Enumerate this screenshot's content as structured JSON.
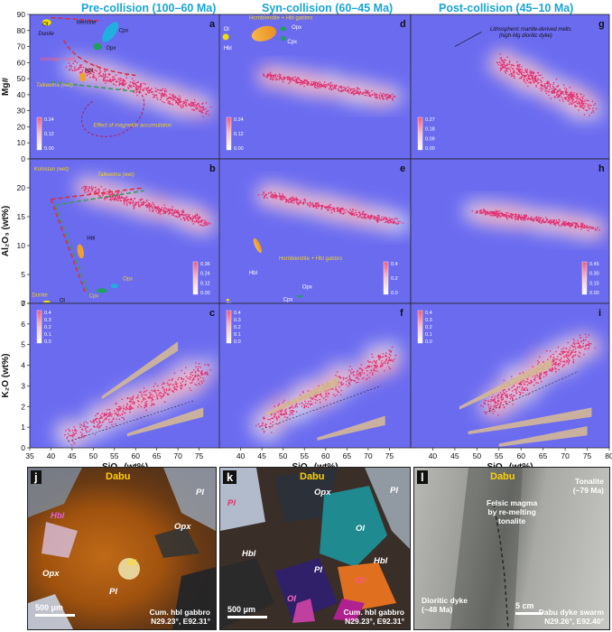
{
  "titles": {
    "pre": "Pre-collision (100–60 Ma)",
    "syn": "Syn-collision (60–45 Ma)",
    "post": "Post-collision (45–10 Ma)"
  },
  "axes": {
    "ylabel_top": "Mg#",
    "ylabel_mid": "Al₂O₃ (wt%)",
    "ylabel_bot": "K₂O (wt%)",
    "xlabel": "SiO₂ (wt%)"
  },
  "colors": {
    "background": "#6b6bf0",
    "density_low": "#c8cdf2",
    "density_high": "#f6a8b8",
    "dots": "#e03070",
    "title_blue": "#1aa5d8",
    "trend_green": "#3a9a5a",
    "trend_red": "#d83040",
    "field_orange": "#f0a030",
    "field_cyan": "#20b0e0",
    "field_green": "#20a060",
    "field_yellow": "#f0e000",
    "annot_yellow": "#f0d020"
  },
  "chart_data": [
    {
      "panel": "a",
      "type": "scatter",
      "ylabel": "Mg#",
      "xlim": [
        35,
        80
      ],
      "ylim": [
        0,
        90
      ],
      "xticks": [
        35,
        40,
        45,
        50,
        55,
        60,
        65,
        70,
        75
      ],
      "yticks": [
        0,
        10,
        20,
        30,
        40,
        50,
        60,
        70,
        80,
        90
      ],
      "density_scale": [
        "0.24",
        "0.12",
        "0.00"
      ],
      "point_cloud": {
        "from": [
          45,
          58
        ],
        "to": [
          77,
          30
        ],
        "spread": 11,
        "n": 420
      },
      "labels": [
        "Ol",
        "Dunite",
        "Wehrlite",
        "Cpx",
        "Opx",
        "Kohistan (wet)",
        "Hbl",
        "Talkeetna (wet)",
        "Effect of magnetite accumulation"
      ]
    },
    {
      "panel": "d",
      "type": "scatter",
      "ylabel": "Mg#",
      "xlim": [
        35,
        80
      ],
      "ylim": [
        0,
        90
      ],
      "xticks": [
        40,
        45,
        50,
        55,
        60,
        65,
        70,
        75
      ],
      "yticks": [
        0,
        10,
        20,
        30,
        40,
        50,
        60,
        70,
        80,
        90
      ],
      "density_scale": [
        "0.24",
        "0.12",
        "0.00"
      ],
      "point_cloud": {
        "from": [
          46,
          52
        ],
        "to": [
          76,
          38
        ],
        "spread": 6,
        "n": 380
      },
      "labels": [
        "Hornblendite + Hbl gabbro",
        "Ol",
        "Hbl",
        "Opx",
        "Cpx"
      ]
    },
    {
      "panel": "g",
      "type": "scatter",
      "ylabel": "Mg#",
      "xlim": [
        35,
        80
      ],
      "ylim": [
        0,
        90
      ],
      "xticks": [
        40,
        45,
        50,
        55,
        60,
        65,
        70,
        75,
        80
      ],
      "yticks": [
        0,
        10,
        20,
        30,
        40,
        50,
        60,
        70,
        80,
        90
      ],
      "density_scale": [
        "0.27",
        "0.18",
        "0.09",
        "0.00"
      ],
      "point_cloud": {
        "from": [
          55,
          60
        ],
        "to": [
          76,
          32
        ],
        "spread": 14,
        "n": 450
      },
      "labels": [
        "Lithospheric mantle-derived melts",
        "(high-Mg dioritic dyke)"
      ]
    },
    {
      "panel": "b",
      "type": "scatter",
      "ylabel": "Al₂O₃ (wt%)",
      "xlim": [
        35,
        80
      ],
      "ylim": [
        0,
        25
      ],
      "xticks": [
        35,
        40,
        45,
        50,
        55,
        60,
        65,
        70,
        75
      ],
      "yticks": [
        0,
        5,
        10,
        15,
        20
      ],
      "density_scale": [
        "0.36",
        "0.24",
        "0.12",
        "0.00"
      ],
      "point_cloud": {
        "from": [
          48,
          20
        ],
        "to": [
          77,
          14
        ],
        "spread": 2.6,
        "n": 420
      },
      "labels": [
        "Kohistan (wet)",
        "Talkeetna (wet)",
        "Hbl",
        "Dunite",
        "Ol",
        "Opx",
        "Cpx"
      ]
    },
    {
      "panel": "e",
      "type": "scatter",
      "ylabel": "Al₂O₃ (wt%)",
      "xlim": [
        35,
        80
      ],
      "ylim": [
        0,
        25
      ],
      "xticks": [
        40,
        45,
        50,
        55,
        60,
        65,
        70,
        75
      ],
      "yticks": [
        0,
        5,
        10,
        15,
        20
      ],
      "density_scale": [
        "0.4",
        "0.2",
        "0.0"
      ],
      "point_cloud": {
        "from": [
          45,
          19
        ],
        "to": [
          77,
          14
        ],
        "spread": 1.5,
        "n": 380
      },
      "labels": [
        "Hornblendite + Hbl gabbro",
        "Hbl",
        "Ol",
        "Cpx",
        "Opx"
      ]
    },
    {
      "panel": "h",
      "type": "scatter",
      "ylabel": "Al₂O₃ (wt%)",
      "xlim": [
        35,
        80
      ],
      "ylim": [
        0,
        25
      ],
      "xticks": [
        40,
        45,
        50,
        55,
        60,
        65,
        70,
        75,
        80
      ],
      "yticks": [
        0,
        5,
        10,
        15,
        20
      ],
      "density_scale": [
        "0.45",
        "0.30",
        "0.15",
        "0.00"
      ],
      "point_cloud": {
        "from": [
          50,
          16
        ],
        "to": [
          77,
          13
        ],
        "spread": 1.4,
        "n": 400
      },
      "labels": []
    },
    {
      "panel": "c",
      "type": "scatter",
      "ylabel": "K₂O (wt%)",
      "xlabel": "SiO₂ (wt%)",
      "xlim": [
        35,
        80
      ],
      "ylim": [
        0,
        7
      ],
      "xticks": [
        35,
        40,
        45,
        50,
        55,
        60,
        65,
        70,
        75
      ],
      "yticks": [
        0,
        1,
        2,
        3,
        4,
        5,
        6,
        7
      ],
      "density_scale": [
        "0.4",
        "0.3",
        "0.2",
        "0.1",
        "0.0"
      ],
      "point_cloud": {
        "from": [
          44,
          0.6
        ],
        "to": [
          77,
          3.8
        ],
        "spread": 1.4,
        "n": 420
      },
      "labels": []
    },
    {
      "panel": "f",
      "type": "scatter",
      "ylabel": "K₂O (wt%)",
      "xlabel": "SiO₂ (wt%)",
      "xlim": [
        35,
        80
      ],
      "ylim": [
        0,
        7
      ],
      "xticks": [
        40,
        45,
        50,
        55,
        60,
        65,
        70,
        75
      ],
      "yticks": [
        0,
        1,
        2,
        3,
        4,
        5,
        6,
        7
      ],
      "density_scale": [
        "0.4",
        "0.3",
        "0.2",
        "0.1",
        "0.0"
      ],
      "point_cloud": {
        "from": [
          45,
          1.2
        ],
        "to": [
          76,
          4.5
        ],
        "spread": 1.3,
        "n": 420
      },
      "labels": []
    },
    {
      "panel": "i",
      "type": "scatter",
      "ylabel": "K₂O (wt%)",
      "xlabel": "SiO₂ (wt%)",
      "xlim": [
        35,
        80
      ],
      "ylim": [
        0,
        7
      ],
      "xticks": [
        40,
        45,
        50,
        55,
        60,
        65,
        70,
        75,
        80
      ],
      "yticks": [
        0,
        1,
        2,
        3,
        4,
        5,
        6,
        7
      ],
      "density_scale": [
        "0.4",
        "0.3",
        "0.2",
        "0.1",
        "0.0"
      ],
      "point_cloud": {
        "from": [
          52,
          2.0
        ],
        "to": [
          76,
          5.2
        ],
        "spread": 1.6,
        "n": 450
      },
      "labels": []
    }
  ],
  "photos": [
    {
      "label": "j",
      "title": "Dabu",
      "minerals": [
        "Hbl",
        "Opx",
        "Opx",
        "Ol",
        "Pl",
        "Pl"
      ],
      "caption": [
        "Cum. hbl gabbro",
        "N29.23°, E92.31°"
      ],
      "scale": "500 μm"
    },
    {
      "label": "k",
      "title": "Dabu",
      "minerals": [
        "Opx",
        "Pl",
        "Ol",
        "Hbl",
        "Hbl",
        "Pl",
        "Pl",
        "Ol",
        "Ol"
      ],
      "caption": [
        "Cum. hbl gabbro",
        "N29.23°, E92.31°"
      ],
      "scale": "500 μm"
    },
    {
      "label": "l",
      "title": "Dabu",
      "notes": [
        "Felsic magma",
        "by re-melting",
        "tonalite",
        "Tonalite",
        "(~79 Ma)",
        "Dioritic dyke",
        "(~48 Ma)"
      ],
      "caption": [
        "Dabu dyke swarm",
        "N29.26°, E92.40°"
      ],
      "scale": "5 cm"
    }
  ]
}
